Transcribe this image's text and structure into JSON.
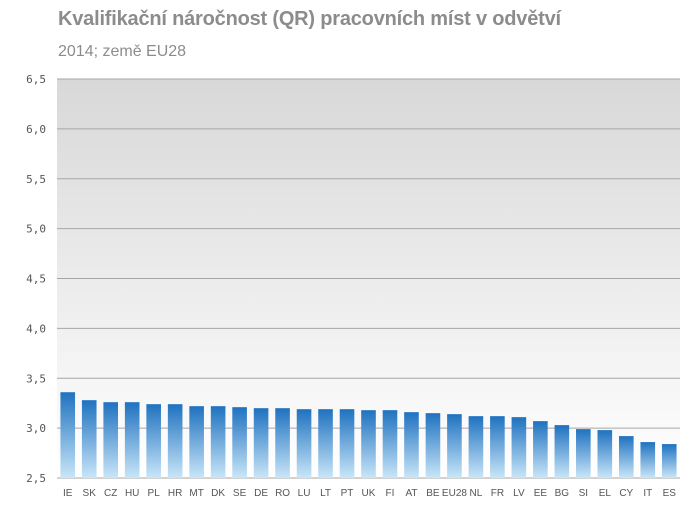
{
  "chart_data": {
    "type": "bar",
    "title": "Kvalifikační náročnost (QR)  pracovních míst v odvětví",
    "subtitle": "2014; země EU28",
    "xlabel": "",
    "ylabel": "",
    "ylim": [
      2.5,
      6.5
    ],
    "yticks": [
      "6,5",
      "6,0",
      "5,5",
      "5,0",
      "4,5",
      "4,0",
      "3,5",
      "3,0",
      "2,5"
    ],
    "ytick_values": [
      6.5,
      6.0,
      5.5,
      5.0,
      4.5,
      4.0,
      3.5,
      3.0,
      2.5
    ],
    "grid": true,
    "legend": "none",
    "categories": [
      "IE",
      "SK",
      "CZ",
      "HU",
      "PL",
      "HR",
      "MT",
      "DK",
      "SE",
      "DE",
      "RO",
      "LU",
      "LT",
      "PT",
      "UK",
      "FI",
      "AT",
      "BE",
      "EU28",
      "NL",
      "FR",
      "LV",
      "EE",
      "BG",
      "SI",
      "EL",
      "CY",
      "IT",
      "ES"
    ],
    "values": [
      3.36,
      3.28,
      3.26,
      3.26,
      3.24,
      3.24,
      3.22,
      3.22,
      3.21,
      3.2,
      3.2,
      3.19,
      3.19,
      3.19,
      3.18,
      3.18,
      3.16,
      3.15,
      3.14,
      3.12,
      3.12,
      3.11,
      3.07,
      3.03,
      2.99,
      2.98,
      2.92,
      2.86,
      2.84
    ],
    "colors": {
      "bar_top": "#1f72c0",
      "bar_bottom": "#c9e6f8",
      "plot_bg_top": "#d8d8d8",
      "plot_bg_bottom": "#ffffff",
      "grid": "#a6a6a6",
      "title": "#8c8c8c"
    }
  }
}
